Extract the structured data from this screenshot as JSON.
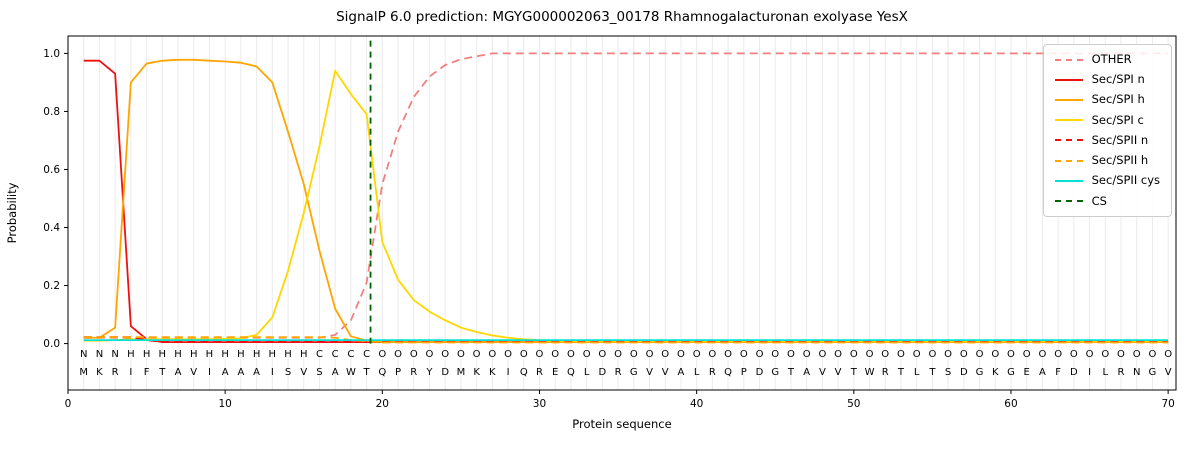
{
  "chart_data": {
    "type": "line",
    "title": "SignalP 6.0 prediction: MGYG000002063_00178 Rhamnogalacturonan exolyase YesX",
    "xlabel": "Protein sequence",
    "ylabel": "Probability",
    "xlim": [
      0,
      70.5
    ],
    "ylim": [
      -0.16,
      1.06
    ],
    "xticks": [
      0,
      10,
      20,
      30,
      40,
      50,
      60,
      70
    ],
    "ytick_labels": [
      "0.0",
      "0.2",
      "0.4",
      "0.6",
      "0.8",
      "1.0"
    ],
    "grid": {
      "vertical_per_residue": true,
      "horizontal": false,
      "color": "#ebebeb"
    },
    "legend_position": "upper right",
    "x": [
      1,
      2,
      3,
      4,
      5,
      6,
      7,
      8,
      9,
      10,
      11,
      12,
      13,
      14,
      15,
      16,
      17,
      18,
      19,
      20,
      21,
      22,
      23,
      24,
      25,
      26,
      27,
      28,
      29,
      30,
      31,
      32,
      33,
      34,
      35,
      36,
      37,
      38,
      39,
      40,
      41,
      42,
      43,
      44,
      45,
      46,
      47,
      48,
      49,
      50,
      51,
      52,
      53,
      54,
      55,
      56,
      57,
      58,
      59,
      60,
      61,
      62,
      63,
      64,
      65,
      66,
      67,
      68,
      69,
      70
    ],
    "series": [
      {
        "name": "OTHER",
        "color": "#f08080",
        "dash": "dashed",
        "values": [
          0.02,
          0.02,
          0.02,
          0.02,
          0.02,
          0.02,
          0.02,
          0.02,
          0.02,
          0.02,
          0.02,
          0.02,
          0.02,
          0.02,
          0.02,
          0.02,
          0.03,
          0.08,
          0.21,
          0.55,
          0.73,
          0.85,
          0.92,
          0.96,
          0.98,
          0.99,
          1.0,
          1.0,
          1.0,
          1.0,
          1.0,
          1.0,
          1.0,
          1.0,
          1.0,
          1.0,
          1.0,
          1.0,
          1.0,
          1.0,
          1.0,
          1.0,
          1.0,
          1.0,
          1.0,
          1.0,
          1.0,
          1.0,
          1.0,
          1.0,
          1.0,
          1.0,
          1.0,
          1.0,
          1.0,
          1.0,
          1.0,
          1.0,
          1.0,
          1.0,
          1.0,
          1.0,
          1.0,
          1.0,
          1.0,
          1.0,
          1.0,
          1.0,
          1.0,
          1.0
        ]
      },
      {
        "name": "Sec/SPI n",
        "color": "#ee1111",
        "dash": "solid",
        "values": [
          0.975,
          0.975,
          0.93,
          0.06,
          0.015,
          0.005,
          0.005,
          0.005,
          0.005,
          0.005,
          0.005,
          0.005,
          0.005,
          0.005,
          0.005,
          0.005,
          0.005,
          0.005,
          0.005,
          0.005,
          0.005,
          0.005,
          0.005,
          0.005,
          0.005,
          0.005,
          0.005,
          0.005,
          0.005,
          0.005,
          0.005,
          0.005,
          0.005,
          0.005,
          0.005,
          0.005,
          0.005,
          0.005,
          0.005,
          0.005,
          0.005,
          0.005,
          0.005,
          0.005,
          0.005,
          0.005,
          0.005,
          0.005,
          0.005,
          0.005,
          0.005,
          0.005,
          0.005,
          0.005,
          0.005,
          0.005,
          0.005,
          0.005,
          0.005,
          0.005,
          0.005,
          0.005,
          0.005,
          0.005,
          0.005,
          0.005,
          0.005,
          0.005,
          0.005,
          0.005
        ]
      },
      {
        "name": "Sec/SPI h",
        "color": "#ffa500",
        "dash": "solid",
        "values": [
          0.02,
          0.02,
          0.055,
          0.9,
          0.965,
          0.975,
          0.978,
          0.978,
          0.975,
          0.972,
          0.968,
          0.955,
          0.9,
          0.73,
          0.55,
          0.32,
          0.12,
          0.025,
          0.01,
          0.005,
          0.005,
          0.005,
          0.005,
          0.005,
          0.005,
          0.005,
          0.005,
          0.005,
          0.005,
          0.005,
          0.005,
          0.005,
          0.005,
          0.005,
          0.005,
          0.005,
          0.005,
          0.005,
          0.005,
          0.005,
          0.005,
          0.005,
          0.005,
          0.005,
          0.005,
          0.005,
          0.005,
          0.005,
          0.005,
          0.005,
          0.005,
          0.005,
          0.005,
          0.005,
          0.005,
          0.005,
          0.005,
          0.005,
          0.005,
          0.005,
          0.005,
          0.005,
          0.005,
          0.005,
          0.005,
          0.005,
          0.005,
          0.005,
          0.005,
          0.005
        ]
      },
      {
        "name": "Sec/SPI c",
        "color": "#ffd700",
        "dash": "solid",
        "values": [
          0.01,
          0.01,
          0.012,
          0.015,
          0.015,
          0.015,
          0.015,
          0.015,
          0.015,
          0.016,
          0.018,
          0.03,
          0.09,
          0.25,
          0.45,
          0.68,
          0.94,
          0.86,
          0.79,
          0.35,
          0.22,
          0.15,
          0.11,
          0.08,
          0.055,
          0.04,
          0.028,
          0.02,
          0.015,
          0.012,
          0.008,
          0.008,
          0.008,
          0.008,
          0.008,
          0.008,
          0.008,
          0.008,
          0.008,
          0.008,
          0.008,
          0.008,
          0.008,
          0.008,
          0.008,
          0.008,
          0.008,
          0.008,
          0.008,
          0.008,
          0.008,
          0.008,
          0.008,
          0.008,
          0.008,
          0.008,
          0.008,
          0.008,
          0.008,
          0.008,
          0.008,
          0.008,
          0.008,
          0.008,
          0.008,
          0.008,
          0.008,
          0.008,
          0.008,
          0.008
        ]
      },
      {
        "name": "Sec/SPII n",
        "color": "#ee1111",
        "dash": "dashed",
        "values": [
          0.022,
          0.022,
          0.022,
          0.022,
          0.012,
          0.006,
          0.006,
          0.006,
          0.006,
          0.006,
          0.006,
          0.006,
          0.006,
          0.006,
          0.006,
          0.006,
          0.006,
          0.006,
          0.006,
          0.006,
          0.006,
          0.006,
          0.006,
          0.006,
          0.006,
          0.006,
          0.006,
          0.006,
          0.006,
          0.006,
          0.006,
          0.006,
          0.006,
          0.006,
          0.006,
          0.006,
          0.006,
          0.006,
          0.006,
          0.006,
          0.006,
          0.006,
          0.006,
          0.006,
          0.006,
          0.006,
          0.006,
          0.006,
          0.006,
          0.006,
          0.006,
          0.006,
          0.006,
          0.006,
          0.006,
          0.006,
          0.006,
          0.006,
          0.006,
          0.006,
          0.006,
          0.006,
          0.006,
          0.006,
          0.006,
          0.006,
          0.006,
          0.006,
          0.006,
          0.006
        ]
      },
      {
        "name": "Sec/SPII h",
        "color": "#ffa500",
        "dash": "dashed",
        "values": [
          0.022,
          0.022,
          0.022,
          0.022,
          0.022,
          0.022,
          0.022,
          0.022,
          0.022,
          0.022,
          0.022,
          0.022,
          0.022,
          0.022,
          0.022,
          0.022,
          0.02,
          0.012,
          0.008,
          0.004,
          0.004,
          0.004,
          0.004,
          0.004,
          0.004,
          0.004,
          0.004,
          0.004,
          0.004,
          0.004,
          0.004,
          0.004,
          0.004,
          0.004,
          0.004,
          0.004,
          0.004,
          0.004,
          0.004,
          0.004,
          0.004,
          0.004,
          0.004,
          0.004,
          0.004,
          0.004,
          0.004,
          0.004,
          0.004,
          0.004,
          0.004,
          0.004,
          0.004,
          0.004,
          0.004,
          0.004,
          0.004,
          0.004,
          0.004,
          0.004,
          0.004,
          0.004,
          0.004,
          0.004,
          0.004,
          0.004,
          0.004,
          0.004,
          0.004,
          0.004
        ]
      },
      {
        "name": "Sec/SPII cys",
        "color": "#00e0d5",
        "dash": "solid",
        "values": [
          0.012,
          0.012,
          0.012,
          0.012,
          0.012,
          0.012,
          0.012,
          0.012,
          0.012,
          0.012,
          0.012,
          0.012,
          0.012,
          0.012,
          0.012,
          0.012,
          0.012,
          0.012,
          0.012,
          0.012,
          0.012,
          0.012,
          0.012,
          0.012,
          0.012,
          0.012,
          0.012,
          0.012,
          0.012,
          0.012,
          0.012,
          0.012,
          0.012,
          0.012,
          0.012,
          0.012,
          0.012,
          0.012,
          0.012,
          0.012,
          0.012,
          0.012,
          0.012,
          0.012,
          0.012,
          0.012,
          0.012,
          0.012,
          0.012,
          0.012,
          0.012,
          0.012,
          0.012,
          0.012,
          0.012,
          0.012,
          0.012,
          0.012,
          0.012,
          0.012,
          0.012,
          0.012,
          0.012,
          0.012,
          0.012,
          0.012,
          0.012,
          0.012,
          0.012,
          0.012
        ]
      }
    ],
    "cs_marker": {
      "name": "CS",
      "color": "#006400",
      "dash": "dashed",
      "x": 19.25
    },
    "sequence": "MKRIFTAVIAAAISVSAWTQPRYDMKKIQREQLDRGVVALRQPDGTAVVTWRTLTSDGKGEAFDILRNGV",
    "state_segments": [
      {
        "state": "N",
        "from": 1,
        "to": 3
      },
      {
        "state": "H",
        "from": 4,
        "to": 15
      },
      {
        "state": "C",
        "from": 16,
        "to": 19
      },
      {
        "state": "O",
        "from": 20,
        "to": 70
      }
    ],
    "state_colors": {
      "N": "#ee1111",
      "H": "#ffa500",
      "C": "#ffd700",
      "O": "#9a9a9a"
    },
    "sequence_color": "#000000"
  }
}
